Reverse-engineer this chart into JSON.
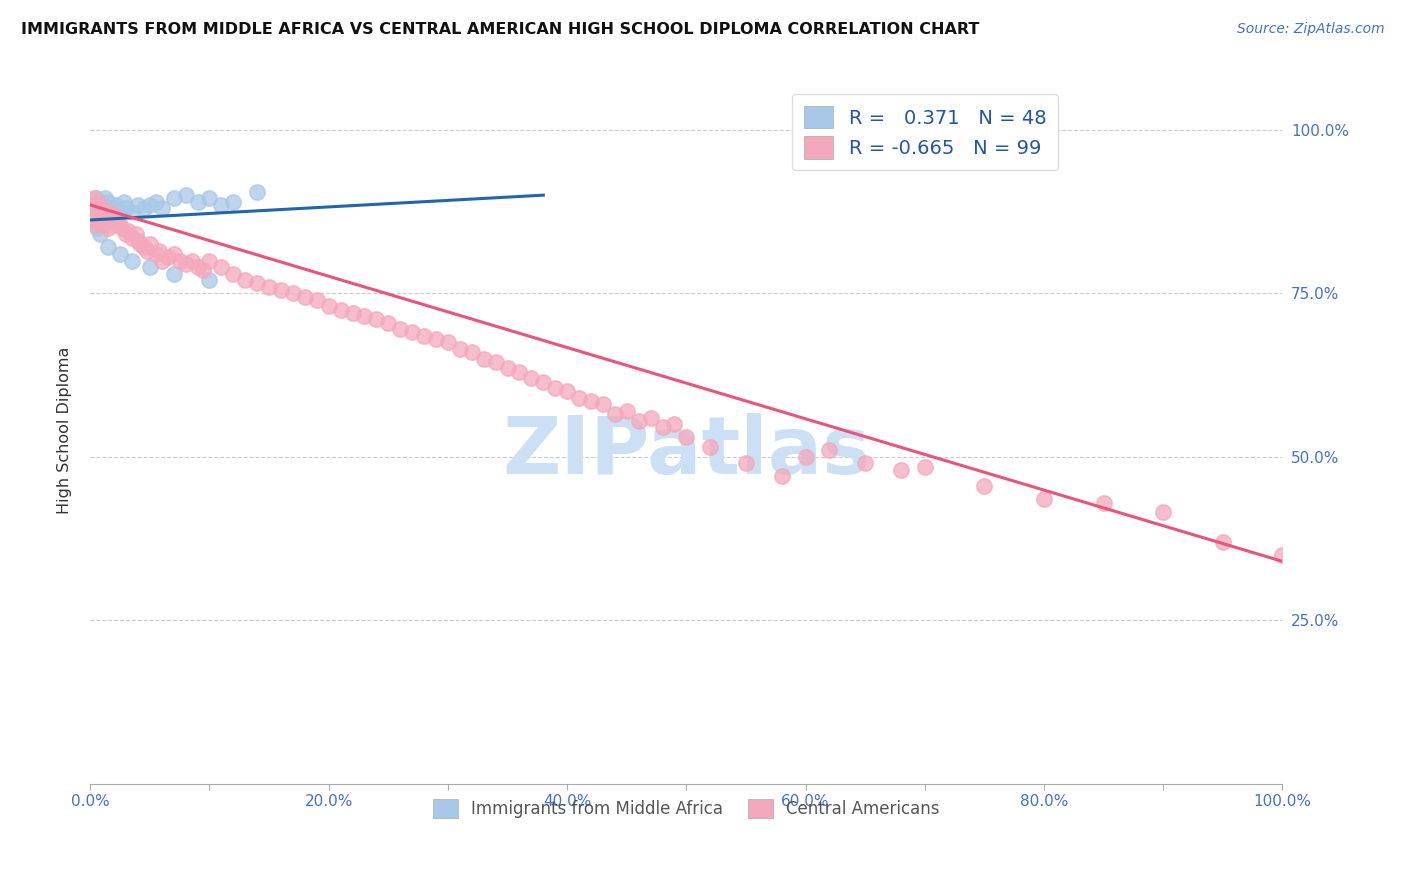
{
  "title": "IMMIGRANTS FROM MIDDLE AFRICA VS CENTRAL AMERICAN HIGH SCHOOL DIPLOMA CORRELATION CHART",
  "source": "Source: ZipAtlas.com",
  "ylabel": "High School Diploma",
  "blue_r": 0.371,
  "blue_n": 48,
  "pink_r": -0.665,
  "pink_n": 99,
  "blue_color": "#a8c8e8",
  "pink_color": "#f4a8bb",
  "blue_line_color": "#2166ac",
  "pink_line_color": "#e8547a",
  "watermark_text": "ZIPatlas",
  "watermark_color": "#cce0f5",
  "xlim": [
    0.0,
    1.0
  ],
  "ylim": [
    0.0,
    1.08
  ],
  "xtick_vals": [
    0.0,
    0.1,
    0.2,
    0.3,
    0.4,
    0.5,
    0.6,
    0.7,
    0.8,
    0.9,
    1.0
  ],
  "xtick_labels": [
    "0.0%",
    "",
    "20.0%",
    "",
    "40.0%",
    "",
    "60.0%",
    "",
    "80.0%",
    "",
    "100.0%"
  ],
  "ytick_vals": [
    0.25,
    0.5,
    0.75,
    1.0
  ],
  "ytick_labels": [
    "25.0%",
    "50.0%",
    "75.0%",
    "100.0%"
  ],
  "legend_label_blue": "Immigrants from Middle Africa",
  "legend_label_pink": "Central Americans",
  "blue_scatter_x": [
    0.002,
    0.003,
    0.004,
    0.005,
    0.005,
    0.006,
    0.006,
    0.007,
    0.007,
    0.008,
    0.009,
    0.01,
    0.01,
    0.011,
    0.012,
    0.013,
    0.014,
    0.015,
    0.016,
    0.018,
    0.02,
    0.022,
    0.025,
    0.028,
    0.03,
    0.035,
    0.04,
    0.045,
    0.05,
    0.055,
    0.06,
    0.07,
    0.08,
    0.09,
    0.1,
    0.11,
    0.12,
    0.14,
    0.003,
    0.004,
    0.006,
    0.008,
    0.015,
    0.025,
    0.035,
    0.05,
    0.07,
    0.1
  ],
  "blue_scatter_y": [
    0.88,
    0.875,
    0.87,
    0.895,
    0.86,
    0.885,
    0.855,
    0.89,
    0.865,
    0.88,
    0.87,
    0.885,
    0.86,
    0.875,
    0.895,
    0.87,
    0.88,
    0.89,
    0.875,
    0.87,
    0.88,
    0.885,
    0.875,
    0.89,
    0.88,
    0.875,
    0.885,
    0.88,
    0.885,
    0.89,
    0.88,
    0.895,
    0.9,
    0.89,
    0.895,
    0.885,
    0.89,
    0.905,
    0.87,
    0.86,
    0.85,
    0.84,
    0.82,
    0.81,
    0.8,
    0.79,
    0.78,
    0.77
  ],
  "pink_scatter_x": [
    0.002,
    0.003,
    0.003,
    0.004,
    0.004,
    0.005,
    0.005,
    0.006,
    0.007,
    0.008,
    0.008,
    0.009,
    0.01,
    0.01,
    0.011,
    0.012,
    0.013,
    0.014,
    0.015,
    0.016,
    0.018,
    0.02,
    0.022,
    0.025,
    0.027,
    0.03,
    0.032,
    0.035,
    0.038,
    0.04,
    0.042,
    0.045,
    0.048,
    0.05,
    0.055,
    0.058,
    0.06,
    0.065,
    0.07,
    0.075,
    0.08,
    0.085,
    0.09,
    0.095,
    0.1,
    0.11,
    0.12,
    0.13,
    0.14,
    0.15,
    0.16,
    0.17,
    0.18,
    0.19,
    0.2,
    0.21,
    0.22,
    0.23,
    0.24,
    0.25,
    0.26,
    0.27,
    0.28,
    0.29,
    0.3,
    0.31,
    0.32,
    0.33,
    0.34,
    0.35,
    0.36,
    0.37,
    0.38,
    0.39,
    0.4,
    0.42,
    0.44,
    0.46,
    0.48,
    0.5,
    0.52,
    0.55,
    0.58,
    0.6,
    0.62,
    0.65,
    0.68,
    0.7,
    0.75,
    0.8,
    0.85,
    0.9,
    0.95,
    1.0,
    0.45,
    0.47,
    0.49,
    0.41,
    0.43
  ],
  "pink_scatter_y": [
    0.88,
    0.87,
    0.895,
    0.865,
    0.885,
    0.855,
    0.875,
    0.88,
    0.87,
    0.86,
    0.885,
    0.865,
    0.875,
    0.855,
    0.87,
    0.86,
    0.865,
    0.875,
    0.85,
    0.86,
    0.855,
    0.87,
    0.86,
    0.855,
    0.85,
    0.84,
    0.845,
    0.835,
    0.84,
    0.83,
    0.825,
    0.82,
    0.815,
    0.825,
    0.81,
    0.815,
    0.8,
    0.805,
    0.81,
    0.8,
    0.795,
    0.8,
    0.79,
    0.785,
    0.8,
    0.79,
    0.78,
    0.77,
    0.765,
    0.76,
    0.755,
    0.75,
    0.745,
    0.74,
    0.73,
    0.725,
    0.72,
    0.715,
    0.71,
    0.705,
    0.695,
    0.69,
    0.685,
    0.68,
    0.675,
    0.665,
    0.66,
    0.65,
    0.645,
    0.635,
    0.63,
    0.62,
    0.615,
    0.605,
    0.6,
    0.585,
    0.565,
    0.555,
    0.545,
    0.53,
    0.515,
    0.49,
    0.47,
    0.5,
    0.51,
    0.49,
    0.48,
    0.485,
    0.455,
    0.435,
    0.43,
    0.415,
    0.37,
    0.35,
    0.57,
    0.56,
    0.55,
    0.59,
    0.58
  ],
  "blue_line_x": [
    0.0,
    0.38
  ],
  "blue_line_y": [
    0.862,
    0.9
  ],
  "pink_line_x": [
    0.0,
    1.0
  ],
  "pink_line_y": [
    0.885,
    0.34
  ]
}
